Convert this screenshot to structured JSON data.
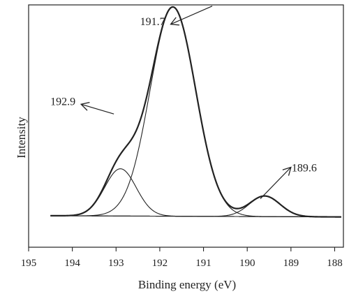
{
  "chart_data": {
    "type": "line",
    "title": "",
    "xlabel": "Binding energy (eV)",
    "ylabel": "Intensity",
    "xlim": [
      195,
      187.8
    ],
    "x_reversed": true,
    "ylim": [
      0,
      1
    ],
    "y_ticks_shown": false,
    "x_ticks": [
      "195",
      "194",
      "193",
      "192",
      "191",
      "190",
      "189",
      "188"
    ],
    "grid": false,
    "legend": "none",
    "baseline": {
      "start": [
        194.5,
        0.13
      ],
      "end": [
        187.85,
        0.125
      ]
    },
    "peaks": [
      {
        "center": 192.9,
        "amplitude": 0.195,
        "sigma": 0.36
      },
      {
        "center": 191.7,
        "amplitude": 0.863,
        "sigma": 0.52
      },
      {
        "center": 189.6,
        "amplitude": 0.085,
        "sigma": 0.35
      }
    ],
    "x_range": [
      194.5,
      187.85
    ],
    "series": [
      {
        "role": "envelope",
        "stroke_width": 2.2
      },
      {
        "role": "component",
        "peak": 0,
        "stroke_width": 1.1
      },
      {
        "role": "component",
        "peak": 1,
        "stroke_width": 1.1
      },
      {
        "role": "component",
        "peak": 2,
        "stroke_width": 1.1
      },
      {
        "role": "baseline",
        "stroke_width": 1.1
      }
    ],
    "annotations": [
      {
        "label": "191.7",
        "tip": [
          191.75,
          0.92
        ],
        "tail": [
          190.8,
          0.995
        ]
      },
      {
        "label": "192.9",
        "tip": [
          193.8,
          0.59
        ],
        "tail": [
          193.05,
          0.55
        ]
      },
      {
        "label": "189.6",
        "tip": [
          189.0,
          0.33
        ],
        "tail": [
          189.7,
          0.2
        ]
      }
    ],
    "colors": {
      "line": "#222222",
      "axis": "#222222"
    }
  }
}
